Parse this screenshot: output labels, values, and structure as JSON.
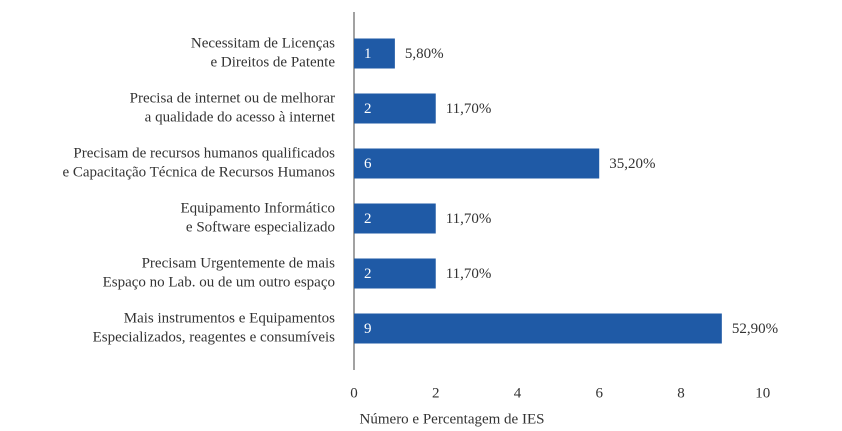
{
  "chart_data": {
    "type": "hbar",
    "categories": [
      [
        "Necessitam de Licenças",
        "e Direitos de Patente"
      ],
      [
        "Precisa de internet ou de melhorar",
        "a qualidade do acesso à internet"
      ],
      [
        "Precisam de recursos humanos qualificados",
        "e Capacitação Técnica de Recursos Humanos"
      ],
      [
        "Equipamento Informático",
        "e Software especializado"
      ],
      [
        "Precisam Urgentemente de mais",
        "Espaço no Lab. ou de um outro espaço"
      ],
      [
        "Mais instrumentos e Equipamentos",
        "Especializados, reagentes e consumíveis"
      ]
    ],
    "values": [
      1,
      2,
      6,
      2,
      2,
      9
    ],
    "percentages": [
      "5,80%",
      "11,70%",
      "35,20%",
      "11,70%",
      "11,70%",
      "52,90%"
    ],
    "color": "#1f5aa6",
    "xlim": [
      0,
      11.5
    ],
    "xticks": [
      0,
      2,
      4,
      6,
      8,
      10
    ],
    "xlabel": "Número e Percentagem de IES"
  }
}
